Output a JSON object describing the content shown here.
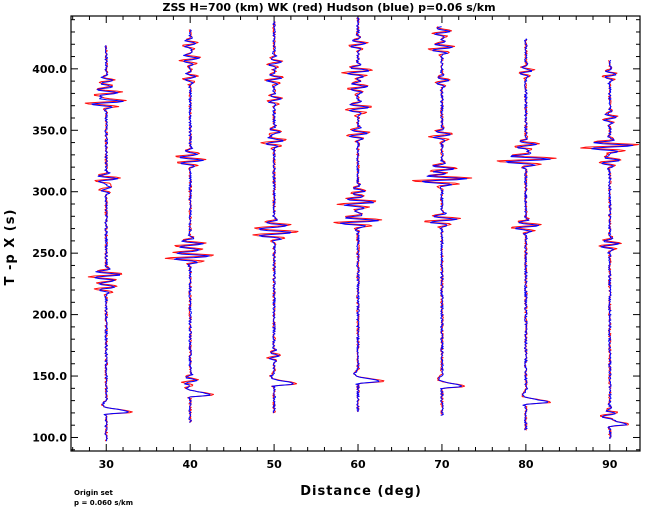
{
  "chart_data": {
    "type": "line",
    "title": "ZSS H=700 (km) WK (red) Hudson (blue) p=0.06 s/km",
    "xlabel": "Distance (deg)",
    "ylabel": "T -p X (s)",
    "xlim": [
      25.8,
      93.6
    ],
    "ylim": [
      89,
      443
    ],
    "xticks": [
      30,
      40,
      50,
      60,
      70,
      80,
      90
    ],
    "xtick_labels": [
      "30",
      "40",
      "50",
      "60",
      "70",
      "80",
      "90"
    ],
    "yticks": [
      100,
      150,
      200,
      250,
      300,
      350,
      400
    ],
    "ytick_labels": [
      "100.0",
      "150.0",
      "200.0",
      "250.0",
      "300.0",
      "350.0",
      "400.0"
    ],
    "grid": false,
    "series": [
      {
        "name": "WK",
        "color": "#ff0000"
      },
      {
        "name": "Hudson",
        "color": "#0000ff"
      }
    ],
    "traces": [
      {
        "distance": 30,
        "start": 97,
        "end": 419,
        "p_arrival": 120,
        "p_peak": 4.5,
        "events": [
          [
            232,
            2.3
          ],
          [
            222,
            1.5
          ],
          [
            310,
            1.8
          ],
          [
            303,
            1.0
          ],
          [
            373,
            2.8
          ],
          [
            380,
            2.0
          ],
          [
            390,
            1.0
          ]
        ]
      },
      {
        "distance": 40,
        "start": 112,
        "end": 432,
        "p_arrival": 134,
        "p_peak": 4.0,
        "events": [
          [
            146,
            1.0
          ],
          [
            247,
            3.2
          ],
          [
            257,
            2.0
          ],
          [
            325,
            1.6
          ],
          [
            330,
            1.0
          ],
          [
            393,
            0.9
          ],
          [
            408,
            1.4
          ],
          [
            420,
            1.0
          ]
        ]
      },
      {
        "distance": 50,
        "start": 120,
        "end": 439,
        "p_arrival": 143,
        "p_peak": 3.8,
        "events": [
          [
            166,
            0.8
          ],
          [
            266,
            2.8
          ],
          [
            272,
            2.0
          ],
          [
            341,
            1.8
          ],
          [
            348,
            1.0
          ],
          [
            375,
            1.0
          ],
          [
            392,
            1.2
          ],
          [
            405,
            1.0
          ]
        ]
      },
      {
        "distance": 60,
        "start": 121,
        "end": 442,
        "p_arrival": 145,
        "p_peak": 4.5,
        "events": [
          [
            276,
            3.2
          ],
          [
            291,
            2.6
          ],
          [
            300,
            1.0
          ],
          [
            347,
            1.6
          ],
          [
            368,
            1.8
          ],
          [
            385,
            1.4
          ],
          [
            398,
            2.0
          ],
          [
            420,
            1.2
          ]
        ]
      },
      {
        "distance": 70,
        "start": 118,
        "end": 435,
        "p_arrival": 141,
        "p_peak": 4.2,
        "events": [
          [
            277,
            2.3
          ],
          [
            310,
            4.0
          ],
          [
            318,
            2.0
          ],
          [
            346,
            1.6
          ],
          [
            390,
            1.0
          ],
          [
            417,
            1.8
          ],
          [
            430,
            1.2
          ]
        ]
      },
      {
        "distance": 80,
        "start": 106,
        "end": 425,
        "p_arrival": 128,
        "p_peak": 4.5,
        "events": [
          [
            272,
            2.0
          ],
          [
            326,
            3.8
          ],
          [
            338,
            1.6
          ],
          [
            398,
            1.0
          ]
        ]
      },
      {
        "distance": 90,
        "start": 99,
        "end": 407,
        "p_arrival": 110,
        "p_peak": 3.5,
        "events": [
          [
            119,
            1.0
          ],
          [
            257,
            1.5
          ],
          [
            325,
            1.5
          ],
          [
            337,
            3.8
          ],
          [
            360,
            1.0
          ],
          [
            395,
            1.0
          ]
        ]
      }
    ]
  },
  "footer": {
    "line1": "Origin set",
    "line2": "p = 0.060 s/km"
  }
}
